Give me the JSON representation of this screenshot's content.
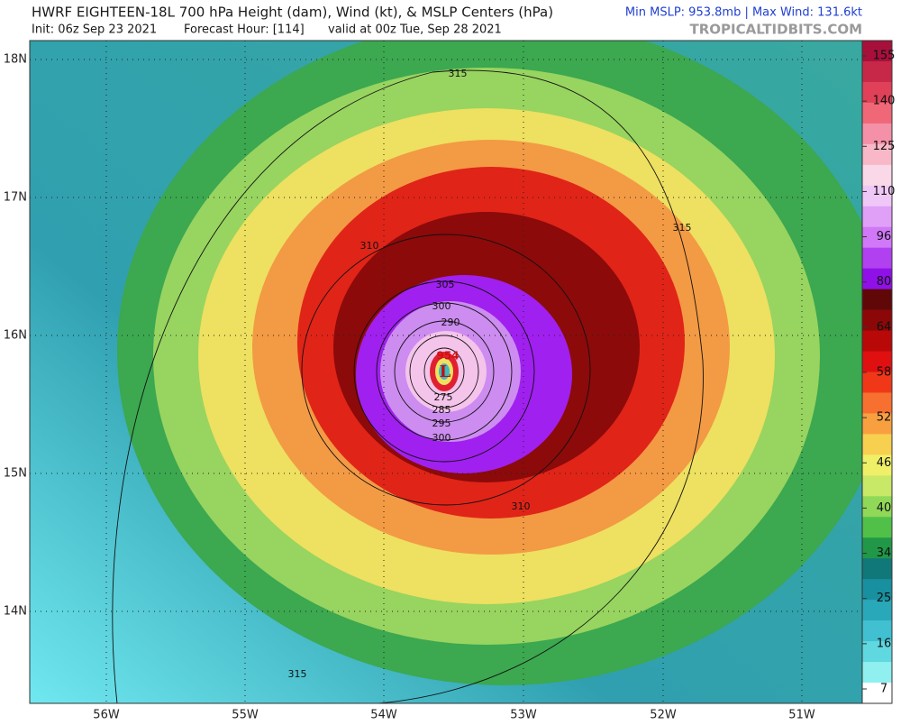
{
  "header": {
    "title": "HWRF EIGHTEEN-18L 700 hPa Height (dam), Wind (kt), & MSLP Centers (hPa)",
    "init": "Init: 06z Sep 23 2021",
    "forecast_hour": "Forecast Hour: [114]",
    "valid": "valid at 00z Tue, Sep 28 2021",
    "stats": "Min MSLP: 953.8mb | Max Wind: 131.6kt",
    "site": "TROPICALTIDBITS.COM"
  },
  "map": {
    "lat_labels": [
      "18N",
      "17N",
      "16N",
      "15N",
      "14N"
    ],
    "lon_labels": [
      "56W",
      "55W",
      "54W",
      "53W",
      "52W",
      "51W"
    ],
    "contour_labels": [
      315,
      315,
      310,
      305,
      300,
      290,
      275,
      285,
      295,
      300,
      310,
      315
    ],
    "low": {
      "symbol": "L",
      "pressure": 954
    }
  },
  "colorbar": {
    "ticks": [
      155,
      140,
      125,
      110,
      96,
      80,
      64,
      58,
      52,
      46,
      40,
      34,
      25,
      16,
      7
    ],
    "colors": [
      "#a8103c",
      "#c82848",
      "#e04058",
      "#f06878",
      "#f490a8",
      "#f8b8c8",
      "#fad8e8",
      "#f0c8f8",
      "#e0a0f8",
      "#d078f8",
      "#b040f0",
      "#9010e8",
      "#600808",
      "#8c0808",
      "#b80808",
      "#e01010",
      "#f03818",
      "#f87030",
      "#f8a040",
      "#f8d050",
      "#f0f068",
      "#c8e868",
      "#90d858",
      "#50c048",
      "#209848",
      "#107878",
      "#1890a0",
      "#28a8b8",
      "#40c0d0",
      "#60d8e0",
      "#90f0f0",
      "#ffffff"
    ]
  }
}
